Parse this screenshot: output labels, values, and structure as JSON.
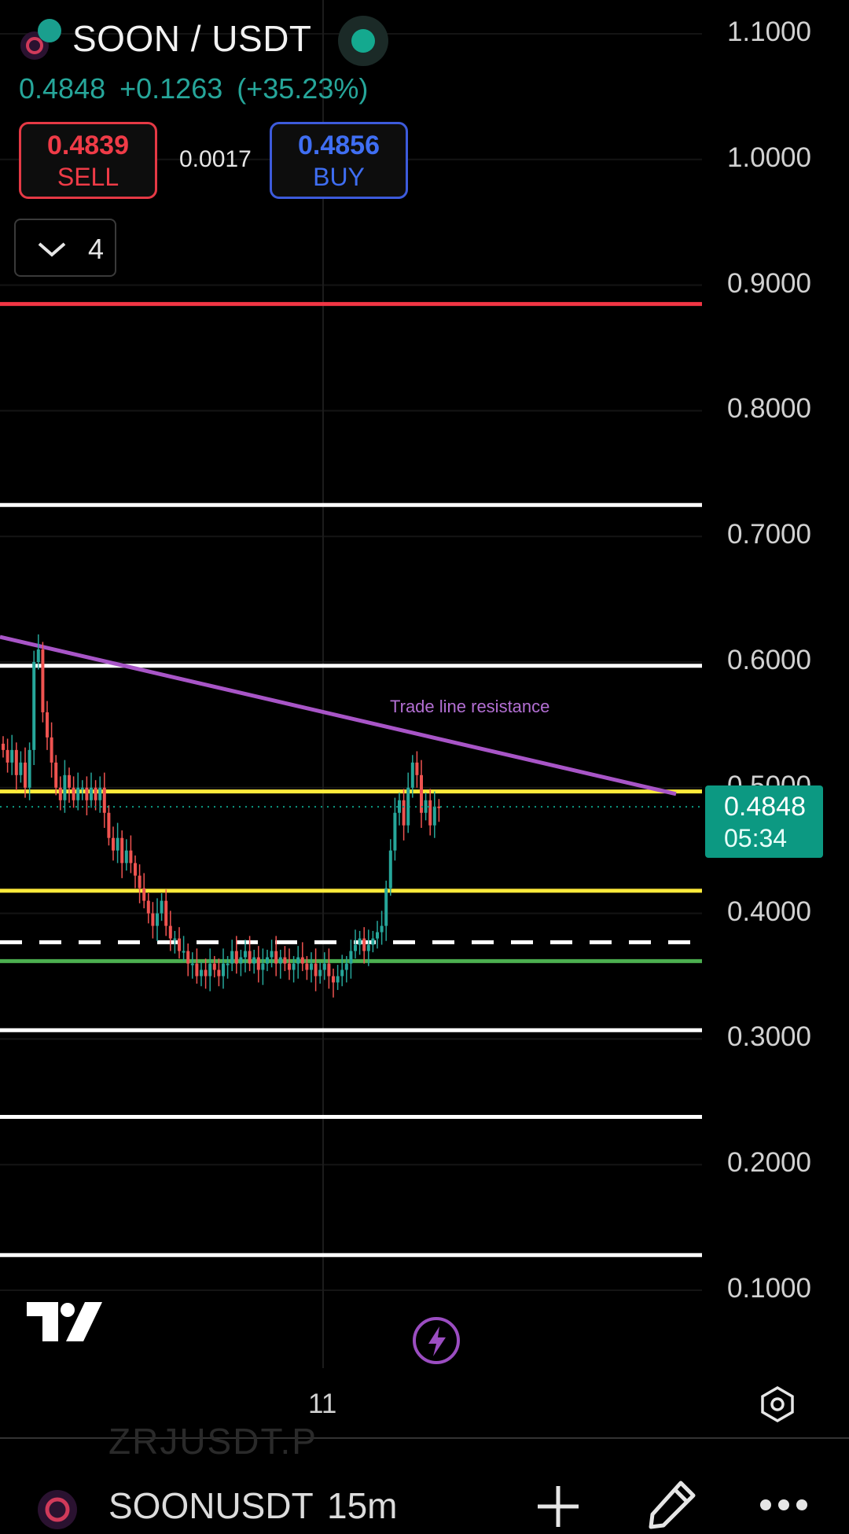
{
  "header": {
    "pair": "SOON / USDT",
    "last_price": "0.4848",
    "change_abs": "+0.1263",
    "change_pct": "(+35.23%)",
    "market_status": "open"
  },
  "trade": {
    "sell_price": "0.4839",
    "sell_label": "SELL",
    "spread": "0.0017",
    "buy_price": "0.4856",
    "buy_label": "BUY"
  },
  "indicators": {
    "count": "4",
    "toggle_icon": "chevron-down-icon"
  },
  "price_axis": {
    "labels": [
      "1.1000",
      "1.0000",
      "0.9000",
      "0.8000",
      "0.7000",
      "0.6000",
      "0.5000",
      "0.4000",
      "0.3000",
      "0.2000",
      "0.1000"
    ]
  },
  "current_price_tag": {
    "price": "0.4848",
    "countdown": "05:34"
  },
  "annotations": {
    "trend_label": "Trade line resistance"
  },
  "time_axis": {
    "label": "11"
  },
  "bottom_bar": {
    "ghost_symbol": "ZRJUSDT.P",
    "symbol": "SOONUSDT",
    "interval": "15m",
    "icons": [
      "add-icon",
      "draw-icon",
      "more-icon"
    ]
  },
  "colors": {
    "up": "#26a69a",
    "down": "#ef5350",
    "resistance_red": "#f23645",
    "support_yellow": "#ffeb3b",
    "support_green": "#4caf50",
    "trendline": "#a855c7",
    "current_price_bg": "#0c9982"
  },
  "chart_data": {
    "type": "candlestick",
    "interval": "15m",
    "y_range": [
      0,
      1.2
    ],
    "horizontal_lines": [
      {
        "price": 0.885,
        "color": "#f23645",
        "style": "solid"
      },
      {
        "price": 0.725,
        "color": "#ffffff",
        "style": "solid"
      },
      {
        "price": 0.597,
        "color": "#ffffff",
        "style": "solid"
      },
      {
        "price": 0.497,
        "color": "#ffeb3b",
        "style": "solid"
      },
      {
        "price": 0.418,
        "color": "#ffeb3b",
        "style": "solid"
      },
      {
        "price": 0.377,
        "color": "#ffffff",
        "style": "dashed"
      },
      {
        "price": 0.362,
        "color": "#4caf50",
        "style": "solid"
      },
      {
        "price": 0.307,
        "color": "#ffffff",
        "style": "solid"
      },
      {
        "price": 0.238,
        "color": "#ffffff",
        "style": "solid"
      },
      {
        "price": 0.128,
        "color": "#ffffff",
        "style": "solid"
      }
    ],
    "trendline": {
      "from": 0.62,
      "to": 0.495,
      "label": "Trade line resistance"
    },
    "current_price": 0.4848,
    "closes": [
      0.53,
      0.52,
      0.53,
      0.51,
      0.52,
      0.5,
      0.53,
      0.6,
      0.61,
      0.56,
      0.54,
      0.52,
      0.5,
      0.49,
      0.51,
      0.5,
      0.49,
      0.5,
      0.5,
      0.49,
      0.5,
      0.49,
      0.5,
      0.48,
      0.46,
      0.45,
      0.46,
      0.44,
      0.45,
      0.44,
      0.43,
      0.42,
      0.41,
      0.4,
      0.39,
      0.4,
      0.41,
      0.39,
      0.38,
      0.38,
      0.37,
      0.37,
      0.36,
      0.36,
      0.35,
      0.355,
      0.35,
      0.36,
      0.355,
      0.35,
      0.36,
      0.36,
      0.37,
      0.36,
      0.365,
      0.37,
      0.36,
      0.365,
      0.355,
      0.36,
      0.365,
      0.37,
      0.36,
      0.365,
      0.36,
      0.355,
      0.36,
      0.365,
      0.36,
      0.355,
      0.36,
      0.35,
      0.355,
      0.36,
      0.35,
      0.345,
      0.35,
      0.355,
      0.36,
      0.37,
      0.375,
      0.38,
      0.37,
      0.375,
      0.38,
      0.385,
      0.39,
      0.42,
      0.45,
      0.48,
      0.49,
      0.47,
      0.5,
      0.52,
      0.51,
      0.48,
      0.49,
      0.47,
      0.485,
      0.4848
    ]
  }
}
